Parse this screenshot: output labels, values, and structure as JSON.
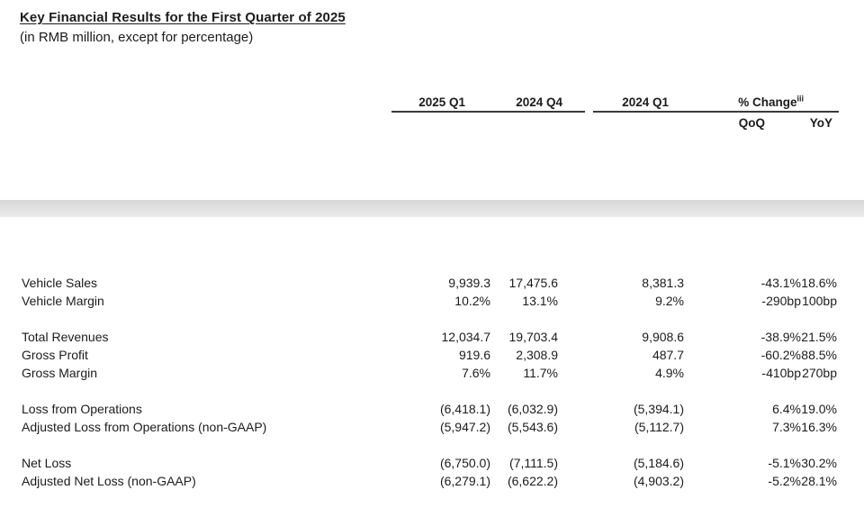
{
  "page": {
    "title": "Key Financial Results for the First Quarter of 2025",
    "subtitle": "(in RMB million, except for percentage)"
  },
  "table": {
    "columns": {
      "q1_2025": "2025 Q1",
      "q4_2024": "2024 Q4",
      "q1_2024": "2024 Q1",
      "pct_change": "% Change",
      "pct_change_footnote": "iii",
      "qoq": "QoQ",
      "yoy": "YoY"
    },
    "rows": [
      {
        "label": "Vehicle Sales",
        "q1_2025": "9,939.3",
        "q4_2024": "17,475.6",
        "q1_2024": "8,381.3",
        "qoq": "-43.1%",
        "yoy": "18.6%"
      },
      {
        "label": "Vehicle Margin",
        "q1_2025": "10.2%",
        "q4_2024": "13.1%",
        "q1_2024": "9.2%",
        "qoq": "-290bp",
        "yoy": "100bp"
      },
      {
        "label": "Total Revenues",
        "q1_2025": "12,034.7",
        "q4_2024": "19,703.4",
        "q1_2024": "9,908.6",
        "qoq": "-38.9%",
        "yoy": "21.5%"
      },
      {
        "label": "Gross Profit",
        "q1_2025": "919.6",
        "q4_2024": "2,308.9",
        "q1_2024": "487.7",
        "qoq": "-60.2%",
        "yoy": "88.5%"
      },
      {
        "label": "Gross Margin",
        "q1_2025": "7.6%",
        "q4_2024": "11.7%",
        "q1_2024": "4.9%",
        "qoq": "-410bp",
        "yoy": "270bp"
      },
      {
        "label": "Loss from Operations",
        "q1_2025": "(6,418.1)",
        "q4_2024": "(6,032.9)",
        "q1_2024": "(5,394.1)",
        "qoq": "6.4%",
        "yoy": "19.0%"
      },
      {
        "label": "Adjusted Loss from Operations (non-GAAP)",
        "q1_2025": "(5,947.2)",
        "q4_2024": "(5,543.6)",
        "q1_2024": "(5,112.7)",
        "qoq": "7.3%",
        "yoy": "16.3%"
      },
      {
        "label": "Net Loss",
        "q1_2025": "(6,750.0)",
        "q4_2024": "(7,111.5)",
        "q1_2024": "(5,184.6)",
        "qoq": "-5.1%",
        "yoy": "30.2%"
      },
      {
        "label": "Adjusted Net Loss (non-GAAP)",
        "q1_2025": "(6,279.1)",
        "q4_2024": "(6,622.2)",
        "q1_2024": "(4,903.2)",
        "qoq": "-5.2%",
        "yoy": "28.1%"
      }
    ]
  },
  "colors": {
    "text": "#1c1c1c",
    "rule": "#3a3a3a",
    "page_break_bar": "#e0e0e0"
  }
}
